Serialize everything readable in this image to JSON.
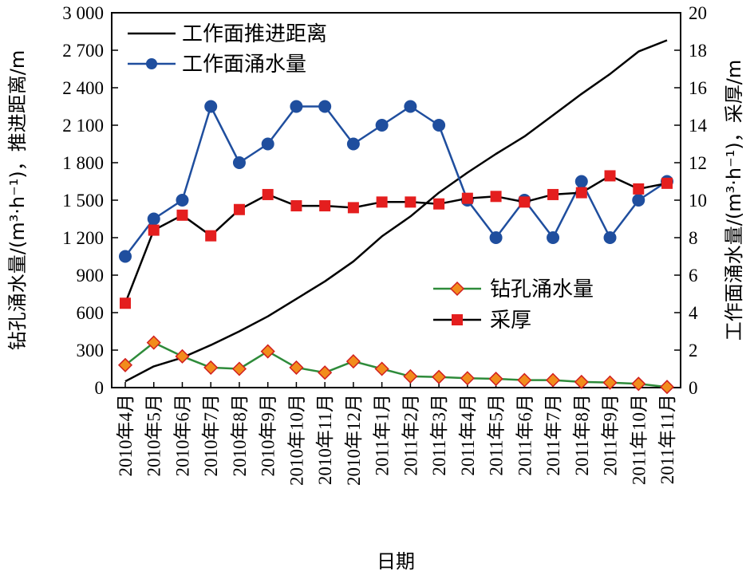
{
  "chart_data": {
    "type": "line",
    "xlabel": "日期",
    "ylabel_left": "钻孔涌水量/(m³·h⁻¹)，推进距离/m",
    "ylabel_right": "工作面涌水量/(m³·h⁻¹)，采厚/m",
    "ylim_left": [
      0,
      3000
    ],
    "ylim_right": [
      0,
      20
    ],
    "yticks_left": [
      "0",
      "300",
      "600",
      "900",
      "1 200",
      "1 500",
      "1 800",
      "2 100",
      "2 400",
      "2 700",
      "3 000"
    ],
    "yticks_right": [
      "0",
      "2",
      "4",
      "6",
      "8",
      "10",
      "12",
      "14",
      "16",
      "18",
      "20"
    ],
    "categories": [
      "2010年4月",
      "2010年5月",
      "2010年6月",
      "2010年7月",
      "2010年8月",
      "2010年9月",
      "2010年10月",
      "2010年11月",
      "2010年12月",
      "2011年1月",
      "2011年2月",
      "2011年3月",
      "2011年4月",
      "2011年5月",
      "2011年6月",
      "2011年7月",
      "2011年8月",
      "2011年9月",
      "2011年10月",
      "2011年11月"
    ],
    "series": [
      {
        "name": "工作面推进距离",
        "axis": "left",
        "color": "#000000",
        "marker": "none",
        "values": [
          50,
          170,
          240,
          340,
          450,
          570,
          710,
          850,
          1010,
          1210,
          1370,
          1560,
          1720,
          1870,
          2010,
          2180,
          2350,
          2510,
          2690,
          2780
        ]
      },
      {
        "name": "工作面涌水量",
        "axis": "right",
        "color": "#1f4e9e",
        "marker": "circle",
        "values": [
          7,
          9,
          10,
          15,
          12,
          13,
          15,
          15,
          13,
          14,
          15,
          14,
          10,
          8,
          10,
          8,
          11,
          8,
          10,
          11
        ]
      },
      {
        "name": "钻孔涌水量",
        "axis": "left",
        "color": "#2e8b3a",
        "marker": "diamond",
        "values": [
          180,
          360,
          250,
          160,
          150,
          290,
          160,
          120,
          210,
          150,
          90,
          85,
          75,
          70,
          60,
          60,
          45,
          40,
          30,
          5
        ]
      },
      {
        "name": "采厚",
        "axis": "right",
        "color": "#000000",
        "marker": "square",
        "values": [
          4.5,
          8.4,
          9.2,
          8.1,
          9.5,
          10.3,
          9.7,
          9.7,
          9.6,
          9.9,
          9.9,
          9.8,
          10.1,
          10.2,
          9.9,
          10.3,
          10.4,
          11.3,
          10.6,
          10.9
        ]
      }
    ]
  }
}
